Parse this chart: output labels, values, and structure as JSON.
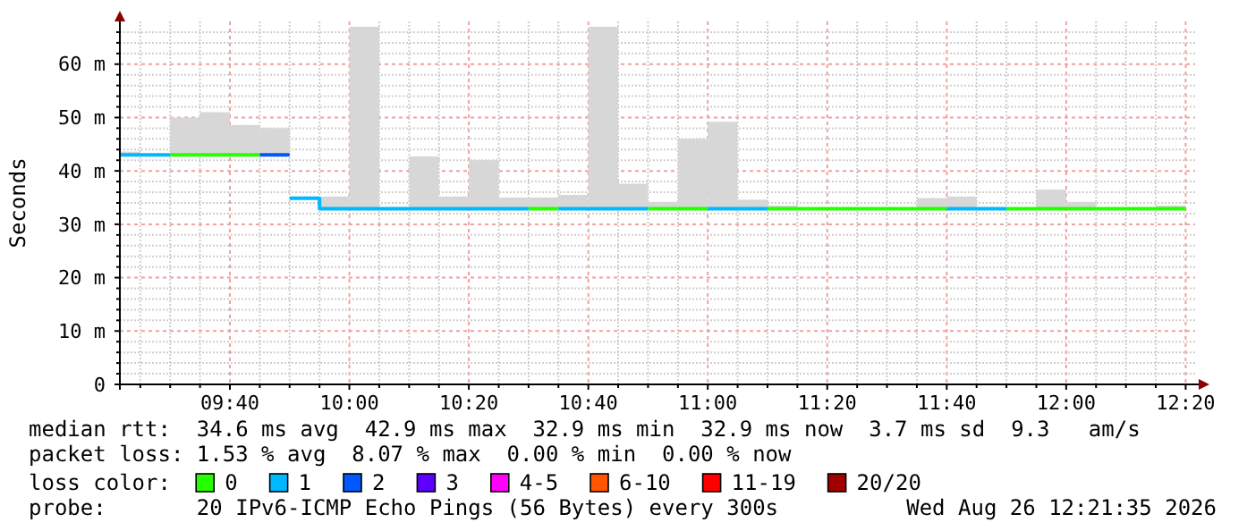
{
  "chart_data": {
    "type": "candlestick",
    "ylabel": "Seconds",
    "legend_title": "loss color:",
    "legend": "bottom",
    "grid": true,
    "annotations": [
      "median rtt:  34.6 ms avg  42.9 ms max  32.9 ms min  32.9 ms now  3.7 ms sd  9.3   am/s",
      "packet loss: 1.53 % avg  8.07 % max  0.00 % min  0.00 % now",
      "probe:       20 IPv6-ICMP Echo Pings (56 Bytes) every 300s",
      "Wed Aug 26 12:21:35 2026"
    ],
    "xlim": [
      9.3597,
      12.3597
    ],
    "x": [
      9.375,
      9.5417,
      9.625,
      9.7083,
      9.7917,
      9.9583,
      10.0417,
      10.2083,
      10.2917,
      10.375,
      10.4583,
      10.5417,
      10.625,
      10.7083,
      10.7917,
      10.875,
      10.9583,
      11.0417,
      11.125,
      11.2083,
      11.625,
      11.7083,
      11.9583,
      12.0417,
      12.2917
    ],
    "xticks": [
      {
        "value": 9.4167,
        "label": null
      },
      {
        "value": 9.5,
        "label": null
      },
      {
        "value": 9.5833,
        "label": null
      },
      {
        "value": 9.6667,
        "label": "09:40"
      },
      {
        "value": 9.75,
        "label": null
      },
      {
        "value": 9.8333,
        "label": null
      },
      {
        "value": 9.9167,
        "label": null
      },
      {
        "value": 10,
        "label": "10:00"
      },
      {
        "value": 10.0833,
        "label": null
      },
      {
        "value": 10.1667,
        "label": null
      },
      {
        "value": 10.25,
        "label": null
      },
      {
        "value": 10.3333,
        "label": "10:20"
      },
      {
        "value": 10.4167,
        "label": null
      },
      {
        "value": 10.5,
        "label": null
      },
      {
        "value": 10.5833,
        "label": null
      },
      {
        "value": 10.6667,
        "label": "10:40"
      },
      {
        "value": 10.75,
        "label": null
      },
      {
        "value": 10.8333,
        "label": null
      },
      {
        "value": 10.9167,
        "label": null
      },
      {
        "value": 11,
        "label": "11:00"
      },
      {
        "value": 11.0833,
        "label": null
      },
      {
        "value": 11.1667,
        "label": null
      },
      {
        "value": 11.25,
        "label": null
      },
      {
        "value": 11.3333,
        "label": "11:20"
      },
      {
        "value": 11.4167,
        "label": null
      },
      {
        "value": 11.5,
        "label": null
      },
      {
        "value": 11.5833,
        "label": null
      },
      {
        "value": 11.6667,
        "label": "11:40"
      },
      {
        "value": 11.75,
        "label": null
      },
      {
        "value": 11.8333,
        "label": null
      },
      {
        "value": 11.9167,
        "label": null
      },
      {
        "value": 12,
        "label": "12:00"
      },
      {
        "value": 12.0833,
        "label": null
      },
      {
        "value": 12.1667,
        "label": null
      },
      {
        "value": 12.25,
        "label": null
      },
      {
        "value": 12.3333,
        "label": "12:20"
      }
    ],
    "ylim": [
      0,
      68
    ],
    "yticks": [
      0,
      {
        "value": 2,
        "label": null
      },
      {
        "value": 4,
        "label": null
      },
      {
        "value": 6,
        "label": null
      },
      {
        "value": 8,
        "label": null
      },
      {
        "value": 10,
        "label": "10 m"
      },
      {
        "value": 12,
        "label": null
      },
      {
        "value": 14,
        "label": null
      },
      {
        "value": 16,
        "label": null
      },
      {
        "value": 18,
        "label": null
      },
      {
        "value": 20,
        "label": "20 m"
      },
      {
        "value": 22,
        "label": null
      },
      {
        "value": 24,
        "label": null
      },
      {
        "value": 26,
        "label": null
      },
      {
        "value": 28,
        "label": null
      },
      {
        "value": 30,
        "label": "30 m"
      },
      {
        "value": 32,
        "label": null
      },
      {
        "value": 34,
        "label": null
      },
      {
        "value": 36,
        "label": null
      },
      {
        "value": 38,
        "label": null
      },
      {
        "value": 40,
        "label": "40 m"
      },
      {
        "value": 42,
        "label": null
      },
      {
        "value": 44,
        "label": null
      },
      {
        "value": 46,
        "label": null
      },
      {
        "value": 48,
        "label": null
      },
      {
        "value": 50,
        "label": "50 m"
      },
      {
        "value": 52,
        "label": null
      },
      {
        "value": 54,
        "label": null
      },
      {
        "value": 56,
        "label": null
      },
      {
        "value": 58,
        "label": null
      },
      {
        "value": 60,
        "label": "60 m"
      },
      {
        "value": 62,
        "label": null
      },
      {
        "value": 64,
        "label": null
      },
      {
        "value": 66,
        "label": null
      }
    ],
    "ohlc": [
      [
        43,
        43.6,
        43,
        43.6
      ],
      [
        43,
        50.0,
        43,
        50.0
      ],
      [
        43,
        51.0,
        43,
        51.0
      ],
      [
        43,
        48.6,
        43,
        48.6
      ],
      [
        43,
        48.0,
        43,
        48.0
      ],
      [
        32.9,
        35.2,
        32.9,
        35.2
      ],
      [
        32.9,
        67.0,
        32.9,
        67.0
      ],
      [
        32.9,
        42.7,
        32.9,
        42.7
      ],
      [
        32.9,
        35.2,
        32.9,
        35.2
      ],
      [
        32.9,
        42.0,
        32.9,
        42.0
      ],
      [
        32.9,
        35.0,
        32.9,
        35.0
      ],
      [
        32.9,
        35.0,
        32.9,
        35.0
      ],
      [
        32.9,
        35.5,
        32.9,
        35.5
      ],
      [
        32.9,
        67.0,
        32.9,
        67.0
      ],
      [
        32.9,
        37.6,
        32.9,
        37.6
      ],
      [
        32.9,
        34.2,
        32.9,
        34.2
      ],
      [
        32.9,
        46.0,
        32.9,
        46.0
      ],
      [
        32.9,
        49.2,
        32.9,
        49.2
      ],
      [
        32.9,
        34.6,
        32.9,
        34.6
      ],
      [
        32.9,
        33.5,
        32.9,
        33.5
      ],
      [
        32.9,
        34.9,
        32.9,
        34.9
      ],
      [
        32.9,
        35.2,
        32.9,
        35.2
      ],
      [
        32.9,
        36.5,
        32.9,
        36.5
      ],
      [
        32.9,
        34.2,
        32.9,
        34.2
      ],
      [
        32.9,
        33.5,
        32.9,
        33.5
      ]
    ],
    "series": [
      {
        "type": "line",
        "name": "0",
        "color": "#26ff00",
        "x": [
          9.5,
          9.75,
          null,
          10.5,
          10.5833,
          null,
          10.8333,
          11,
          null,
          11.1667,
          11.6667,
          null,
          11.8333,
          12.3333
        ],
        "values": [
          43,
          43,
          null,
          32.9,
          32.9,
          null,
          32.9,
          32.9,
          null,
          32.9,
          32.9,
          null,
          32.9,
          32.9
        ]
      },
      {
        "type": "line",
        "name": "1",
        "color": "#00b8ff",
        "x": [
          9.3597,
          9.5,
          null,
          9.8333,
          9.9167,
          9.9167,
          10.5,
          null,
          10.5833,
          10.8333,
          null,
          11,
          11.1667,
          null,
          11.6667,
          11.8333
        ],
        "values": [
          43,
          43,
          null,
          34.9,
          34.9,
          32.9,
          32.9,
          null,
          32.9,
          32.9,
          null,
          32.9,
          32.9,
          null,
          32.9,
          32.9
        ]
      },
      {
        "type": "line",
        "name": "2",
        "color": "#0059ff",
        "x": [
          9.75,
          9.8333
        ],
        "values": [
          43,
          43
        ]
      },
      {
        "type": "line",
        "name": "3",
        "color": "#5e00ff",
        "values": [
          null,
          null,
          null,
          null,
          null,
          null,
          null,
          null,
          null,
          null,
          null,
          null,
          null,
          null,
          null,
          null,
          null,
          null,
          null,
          null,
          null,
          null,
          null,
          null,
          null
        ]
      },
      {
        "type": "line",
        "name": "4-5",
        "color": "#ff00ff",
        "values": [
          null,
          null,
          null,
          null,
          null,
          null,
          null,
          null,
          null,
          null,
          null,
          null,
          null,
          null,
          null,
          null,
          null,
          null,
          null,
          null,
          null,
          null,
          null,
          null,
          null
        ]
      },
      {
        "type": "line",
        "name": "6-10",
        "color": "#ff5500",
        "values": [
          null,
          null,
          null,
          null,
          null,
          null,
          null,
          null,
          null,
          null,
          null,
          null,
          null,
          null,
          null,
          null,
          null,
          null,
          null,
          null,
          null,
          null,
          null,
          null,
          null
        ]
      },
      {
        "type": "line",
        "name": "11-19",
        "color": "#ff0000",
        "values": [
          null,
          null,
          null,
          null,
          null,
          null,
          null,
          null,
          null,
          null,
          null,
          null,
          null,
          null,
          null,
          null,
          null,
          null,
          null,
          null,
          null,
          null,
          null,
          null,
          null
        ]
      },
      {
        "type": "line",
        "name": "20/20",
        "color": "#a10000",
        "values": [
          null,
          null,
          null,
          null,
          null,
          null,
          null,
          null,
          null,
          null,
          null,
          null,
          null,
          null,
          null,
          null,
          null,
          null,
          null,
          null,
          null,
          null,
          null,
          null,
          null
        ]
      }
    ]
  }
}
